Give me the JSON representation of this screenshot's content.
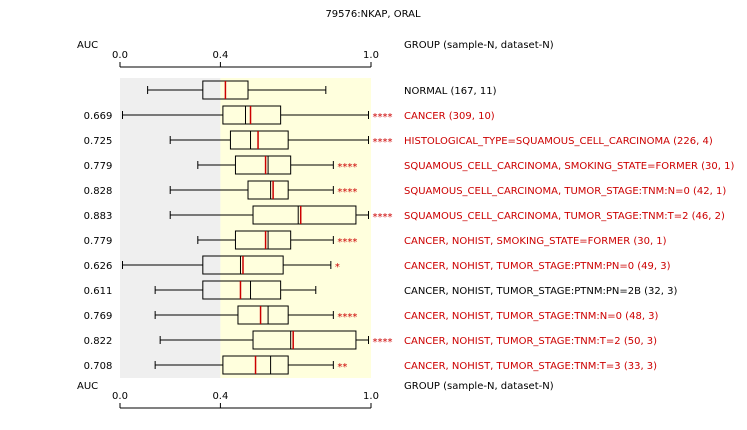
{
  "chart_data": {
    "type": "boxplot",
    "title": "79576:NKAP, ORAL",
    "auc_header": "AUC",
    "group_header": "GROUP (sample-N, dataset-N)",
    "xlim": [
      0,
      1
    ],
    "ticks": [
      {
        "value": 0,
        "label": "0.0"
      },
      {
        "value": 0.4,
        "label": "0.4"
      },
      {
        "value": 1,
        "label": "1.0"
      }
    ],
    "reference_shading": {
      "normal_q1": 0.0,
      "normal_q3": 0.4
    },
    "colors": {
      "significant": "#cc0000",
      "normal": "#000000",
      "left_band": "#efefef",
      "right_band": "#ffffdd",
      "median": "#cc0000"
    },
    "rows": [
      {
        "auc": "",
        "label": "NORMAL (167, 11)",
        "color": "normal",
        "stars": "",
        "min": 0.11,
        "q1": 0.33,
        "median": 0.42,
        "q3": 0.51,
        "max": 0.82,
        "extra": []
      },
      {
        "auc": "0.669",
        "label": "CANCER (309, 10)",
        "color": "significant",
        "stars": "****",
        "min": 0.01,
        "q1": 0.41,
        "median": 0.52,
        "q3": 0.64,
        "max": 0.99,
        "extra": [
          0.5
        ]
      },
      {
        "auc": "0.725",
        "label": "HISTOLOGICAL_TYPE=SQUAMOUS_CELL_CARCINOMA (226, 4)",
        "color": "significant",
        "stars": "****",
        "min": 0.2,
        "q1": 0.44,
        "median": 0.55,
        "q3": 0.67,
        "max": 0.99,
        "extra": [
          0.52
        ]
      },
      {
        "auc": "0.779",
        "label": "SQUAMOUS_CELL_CARCINOMA, SMOKING_STATE=FORMER (30, 1)",
        "color": "significant",
        "stars": "****",
        "min": 0.31,
        "q1": 0.46,
        "median": 0.58,
        "q3": 0.68,
        "max": 0.85,
        "extra": [
          0.59
        ]
      },
      {
        "auc": "0.828",
        "label": "SQUAMOUS_CELL_CARCINOMA, TUMOR_STAGE:TNM:N=0 (42, 1)",
        "color": "significant",
        "stars": "****",
        "min": 0.2,
        "q1": 0.51,
        "median": 0.61,
        "q3": 0.67,
        "max": 0.85,
        "extra": [
          0.6
        ]
      },
      {
        "auc": "0.883",
        "label": "SQUAMOUS_CELL_CARCINOMA, TUMOR_STAGE:TNM:T=2 (46, 2)",
        "color": "significant",
        "stars": "****",
        "min": 0.2,
        "q1": 0.53,
        "median": 0.72,
        "q3": 0.94,
        "max": 0.99,
        "extra": [
          0.71
        ]
      },
      {
        "auc": "0.779",
        "label": "CANCER, NOHIST, SMOKING_STATE=FORMER (30, 1)",
        "color": "significant",
        "stars": "****",
        "min": 0.31,
        "q1": 0.46,
        "median": 0.58,
        "q3": 0.68,
        "max": 0.85,
        "extra": [
          0.59
        ]
      },
      {
        "auc": "0.626",
        "label": "CANCER, NOHIST, TUMOR_STAGE:PTNM:PN=0 (49, 3)",
        "color": "significant",
        "stars": "*",
        "min": 0.01,
        "q1": 0.33,
        "median": 0.49,
        "q3": 0.65,
        "max": 0.84,
        "extra": [
          0.48
        ]
      },
      {
        "auc": "0.611",
        "label": "CANCER, NOHIST, TUMOR_STAGE:PTNM:PN=2B (32, 3)",
        "color": "normal",
        "stars": "",
        "min": 0.14,
        "q1": 0.33,
        "median": 0.48,
        "q3": 0.64,
        "max": 0.78,
        "extra": [
          0.52
        ]
      },
      {
        "auc": "0.769",
        "label": "CANCER, NOHIST, TUMOR_STAGE:TNM:N=0 (48, 3)",
        "color": "significant",
        "stars": "****",
        "min": 0.14,
        "q1": 0.47,
        "median": 0.56,
        "q3": 0.67,
        "max": 0.85,
        "extra": [
          0.59
        ]
      },
      {
        "auc": "0.822",
        "label": "CANCER, NOHIST, TUMOR_STAGE:TNM:T=2 (50, 3)",
        "color": "significant",
        "stars": "****",
        "min": 0.16,
        "q1": 0.53,
        "median": 0.69,
        "q3": 0.94,
        "max": 0.99,
        "extra": [
          0.68
        ]
      },
      {
        "auc": "0.708",
        "label": "CANCER, NOHIST, TUMOR_STAGE:TNM:T=3 (33, 3)",
        "color": "significant",
        "stars": "**",
        "min": 0.14,
        "q1": 0.41,
        "median": 0.54,
        "q3": 0.67,
        "max": 0.85,
        "extra": [
          0.6
        ]
      }
    ]
  }
}
